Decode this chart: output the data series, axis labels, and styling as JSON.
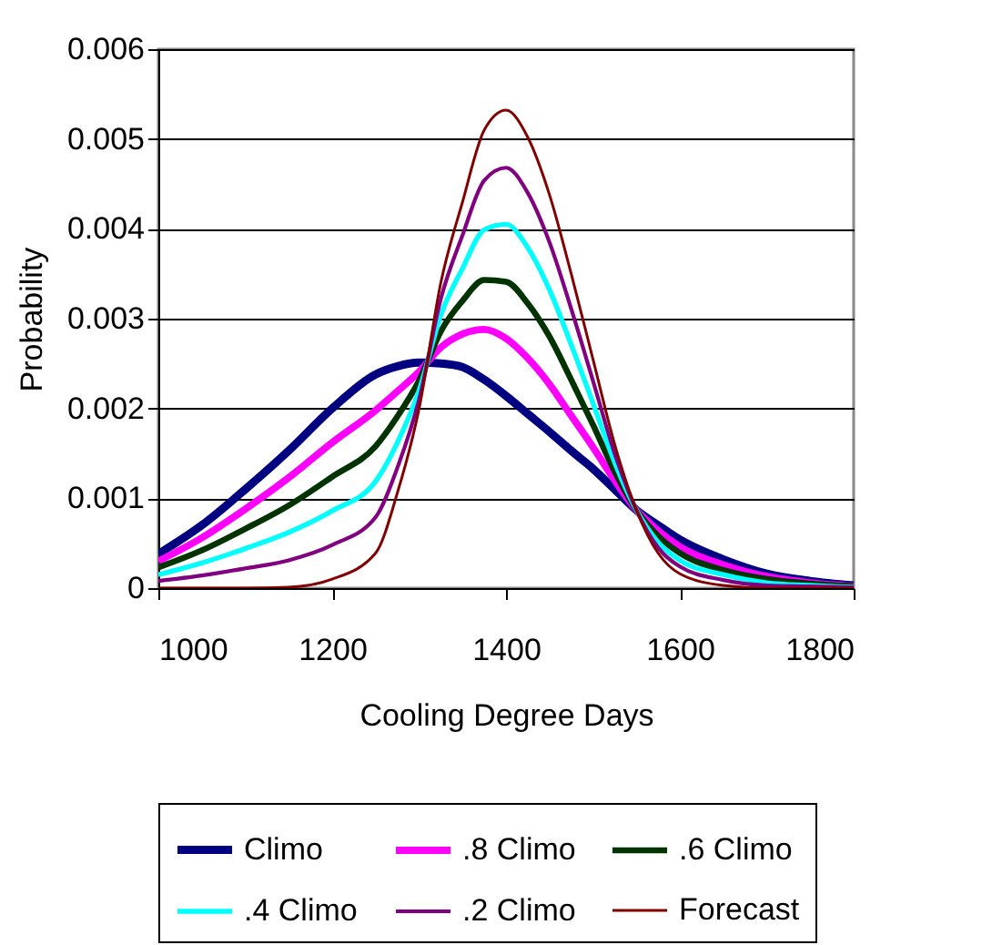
{
  "chart_data": {
    "type": "line",
    "xlabel": "Cooling Degree Days",
    "ylabel": "Probability",
    "x": [
      1000,
      1050,
      1100,
      1150,
      1200,
      1250,
      1275,
      1300,
      1325,
      1350,
      1375,
      1400,
      1425,
      1450,
      1475,
      1500,
      1525,
      1550,
      1575,
      1600,
      1650,
      1700,
      1750,
      1800
    ],
    "series": [
      {
        "name": "Climo",
        "color": "#000080",
        "values": [
          0.00038,
          0.0007,
          0.0011,
          0.00153,
          0.002,
          0.00238,
          0.00247,
          0.00251,
          0.0025,
          0.00246,
          0.00232,
          0.00214,
          0.00194,
          0.00174,
          0.00153,
          0.00133,
          0.0011,
          0.00087,
          0.0007,
          0.00054,
          0.00032,
          0.00016,
          8e-05,
          3e-05
        ]
      },
      {
        "name": ".8 Climo",
        "color": "#ff00ff",
        "values": [
          0.0003,
          0.00056,
          0.00088,
          0.00123,
          0.00162,
          0.00198,
          0.00219,
          0.00241,
          0.00268,
          0.00283,
          0.00288,
          0.00278,
          0.00256,
          0.00227,
          0.00192,
          0.00157,
          0.0012,
          0.00087,
          0.00064,
          0.00046,
          0.00026,
          0.00013,
          6e-05,
          2e-05
        ]
      },
      {
        "name": ".6 Climo",
        "color": "#003300",
        "values": [
          0.00023,
          0.00042,
          0.00066,
          0.00092,
          0.00124,
          0.00158,
          0.00191,
          0.00231,
          0.00286,
          0.0032,
          0.00343,
          0.00341,
          0.00317,
          0.0028,
          0.00232,
          0.00182,
          0.0013,
          0.00087,
          0.00058,
          0.00039,
          0.0002,
          0.0001,
          5e-05,
          2e-05
        ]
      },
      {
        "name": ".4 Climo",
        "color": "#00ffff",
        "values": [
          0.00015,
          0.00028,
          0.00044,
          0.00062,
          0.00086,
          0.00119,
          0.00162,
          0.0022,
          0.00304,
          0.00356,
          0.00399,
          0.00405,
          0.00379,
          0.00332,
          0.00271,
          0.00206,
          0.0014,
          0.00087,
          0.00051,
          0.00031,
          0.00015,
          6e-05,
          3e-05,
          1e-05
        ]
      },
      {
        "name": ".2 Climo",
        "color": "#800080",
        "values": [
          8e-05,
          0.00014,
          0.00022,
          0.00031,
          0.00048,
          0.00079,
          0.00134,
          0.0021,
          0.00322,
          0.00393,
          0.00454,
          0.00468,
          0.0044,
          0.00385,
          0.00311,
          0.00231,
          0.0015,
          0.00087,
          0.00045,
          0.00024,
          9e-05,
          3e-05,
          2e-05,
          1e-05
        ]
      },
      {
        "name": "Forecast",
        "color": "#800000",
        "values": [
          0,
          0,
          0,
          1e-05,
          0.0001,
          0.00039,
          0.00106,
          0.002,
          0.0034,
          0.0043,
          0.0051,
          0.00532,
          0.00502,
          0.00438,
          0.0035,
          0.00255,
          0.0016,
          0.00087,
          0.00039,
          0.00016,
          3e-05,
          0,
          0,
          0
        ]
      }
    ],
    "xlim": [
      1000,
      1800
    ],
    "xticks": [
      1000,
      1200,
      1400,
      1600,
      1800
    ],
    "ylim": [
      0,
      0.006
    ],
    "yticks": [
      0,
      0.001,
      0.002,
      0.003,
      0.004,
      0.005,
      0.006
    ],
    "grid": "y",
    "legend": "bottom",
    "marker": "none",
    "line_style": "solid"
  }
}
